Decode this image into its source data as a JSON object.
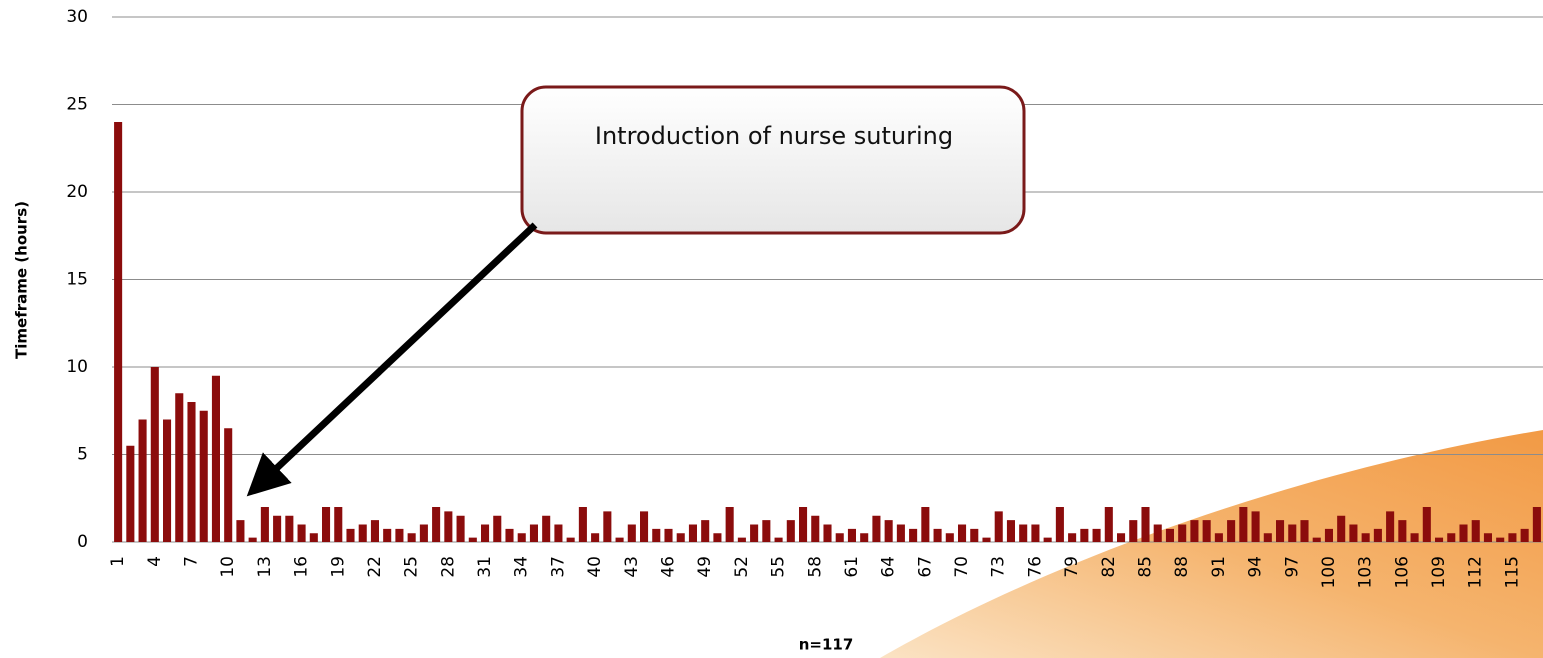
{
  "chart_data": {
    "type": "bar",
    "y_label": "Timeframe (hours)",
    "x_label": "n=117",
    "annotation": "Introduction of nurse suturing",
    "categories": [
      "1",
      null,
      null,
      "4",
      null,
      null,
      "7",
      null,
      null,
      "10",
      null,
      null,
      "13",
      null,
      null,
      "16",
      null,
      null,
      "19",
      null,
      null,
      "22",
      null,
      null,
      "25",
      null,
      null,
      "28",
      null,
      null,
      "31",
      null,
      null,
      "34",
      null,
      null,
      "37",
      null,
      null,
      "40",
      null,
      null,
      "43",
      null,
      null,
      "46",
      null,
      null,
      "49",
      null,
      null,
      "52",
      null,
      null,
      "55",
      null,
      null,
      "58",
      null,
      null,
      "61",
      null,
      null,
      "64",
      null,
      null,
      "67",
      null,
      null,
      "70",
      null,
      null,
      "73",
      null,
      null,
      "76",
      null,
      null,
      "79",
      null,
      null,
      "82",
      null,
      null,
      "85",
      null,
      null,
      "88",
      null,
      null,
      "91",
      null,
      null,
      "94",
      null,
      null,
      "97",
      null,
      null,
      "100",
      null,
      null,
      "103",
      null,
      null,
      "106",
      null,
      null,
      "109",
      null,
      null,
      "112",
      null,
      null,
      "115",
      null,
      null
    ],
    "values": [
      24,
      5.5,
      7,
      10,
      7,
      8.5,
      8,
      7.5,
      9.5,
      6.5,
      1.25,
      0.25,
      2,
      1.5,
      1.5,
      1,
      0.5,
      2,
      2,
      0.75,
      1,
      1.25,
      0.75,
      0.75,
      0.5,
      1,
      2,
      1.75,
      1.5,
      0.25,
      1,
      1.5,
      0.75,
      0.5,
      1,
      1.5,
      1,
      0.25,
      2,
      0.5,
      1.75,
      0.25,
      1,
      1.75,
      0.75,
      0.75,
      0.5,
      1,
      1.25,
      0.5,
      2,
      0.25,
      1,
      1.25,
      0.25,
      1.25,
      2,
      1.5,
      1,
      0.5,
      0.75,
      0.5,
      1.5,
      1.25,
      1,
      0.75,
      2,
      0.75,
      0.5,
      1,
      0.75,
      0.25,
      1.75,
      1.25,
      1,
      1,
      0.25,
      2,
      0.5,
      0.75,
      0.75,
      2,
      0.5,
      1.25,
      2,
      1,
      0.75,
      1,
      1.25,
      1.25,
      0.5,
      1.25,
      2,
      1.75,
      0.5,
      1.25,
      1,
      1.25,
      0.25,
      0.75,
      1.5,
      1,
      0.5,
      0.75,
      1.75,
      1.25,
      0.5,
      2,
      0.25,
      0.5,
      1,
      1.25,
      0.5,
      0.25,
      0.5,
      0.75,
      2
    ],
    "color": "#8b0c0c",
    "ylim": [
      0,
      30
    ],
    "yticks": [
      0,
      5,
      10,
      15,
      20,
      25,
      30
    ],
    "grid": true
  }
}
